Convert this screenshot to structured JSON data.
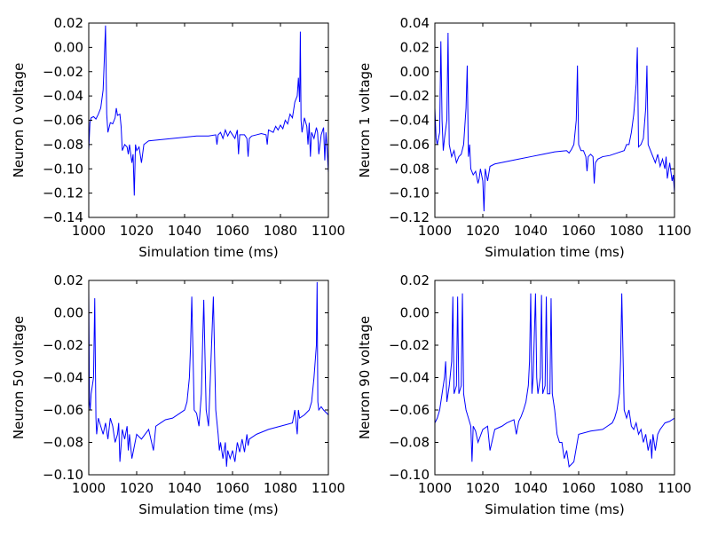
{
  "chart_data": [
    {
      "type": "line",
      "xlabel": "Simulation time (ms)",
      "ylabel": "Neuron 0 voltage",
      "xlim": [
        1000,
        1100
      ],
      "ylim": [
        -0.14,
        0.02
      ],
      "xticks": [
        1000,
        1020,
        1040,
        1060,
        1080,
        1100
      ],
      "xtick_labels": [
        "1000",
        "1020",
        "1040",
        "1060",
        "1080",
        "1100"
      ],
      "yticks": [
        0.02,
        0.0,
        -0.02,
        -0.04,
        -0.06,
        -0.08,
        -0.1,
        -0.12,
        -0.14
      ],
      "ytick_labels": [
        "0.02",
        "0.00",
        "−0.02",
        "−0.04",
        "−0.06",
        "−0.08",
        "−0.10",
        "−0.12",
        "−0.14"
      ],
      "line_color": "#0000ff",
      "grid": false,
      "series": [
        {
          "x": [
            1000,
            1000.5,
            1001,
            1002,
            1003,
            1004,
            1005,
            1006,
            1006.5,
            1007,
            1007.5,
            1008,
            1009,
            1010,
            1011,
            1011.5,
            1012,
            1013,
            1013.5,
            1014,
            1015,
            1016,
            1016.5,
            1017,
            1018,
            1018.5,
            1019,
            1019.5,
            1020,
            1021,
            1022,
            1023,
            1025,
            1030,
            1035,
            1040,
            1045,
            1050,
            1053,
            1053.5,
            1054,
            1055,
            1056,
            1057,
            1058,
            1059,
            1060,
            1061,
            1062,
            1062.5,
            1063,
            1065,
            1066,
            1066.5,
            1067,
            1068,
            1070,
            1072,
            1074,
            1074.5,
            1075,
            1077,
            1078,
            1079,
            1080,
            1081,
            1082,
            1083,
            1084,
            1085,
            1086,
            1087,
            1087.5,
            1088,
            1088.3,
            1088.6,
            1089,
            1090,
            1091,
            1091.5,
            1092,
            1092.5,
            1093,
            1094,
            1095,
            1095.5,
            1096,
            1097,
            1098,
            1098.5,
            1099,
            1099.5,
            1100
          ],
          "y": [
            -0.085,
            -0.062,
            -0.058,
            -0.057,
            -0.059,
            -0.055,
            -0.05,
            -0.035,
            -0.01,
            0.018,
            -0.055,
            -0.07,
            -0.062,
            -0.063,
            -0.058,
            -0.05,
            -0.056,
            -0.055,
            -0.065,
            -0.085,
            -0.08,
            -0.082,
            -0.088,
            -0.08,
            -0.095,
            -0.088,
            -0.122,
            -0.08,
            -0.085,
            -0.082,
            -0.095,
            -0.08,
            -0.077,
            -0.076,
            -0.075,
            -0.074,
            -0.073,
            -0.073,
            -0.072,
            -0.08,
            -0.072,
            -0.07,
            -0.075,
            -0.068,
            -0.073,
            -0.069,
            -0.072,
            -0.075,
            -0.068,
            -0.088,
            -0.072,
            -0.072,
            -0.075,
            -0.09,
            -0.075,
            -0.073,
            -0.072,
            -0.071,
            -0.072,
            -0.08,
            -0.068,
            -0.07,
            -0.065,
            -0.068,
            -0.064,
            -0.067,
            -0.06,
            -0.063,
            -0.055,
            -0.058,
            -0.045,
            -0.04,
            -0.025,
            -0.045,
            0.013,
            -0.06,
            -0.07,
            -0.058,
            -0.065,
            -0.08,
            -0.062,
            -0.09,
            -0.07,
            -0.075,
            -0.066,
            -0.07,
            -0.088,
            -0.072,
            -0.066,
            -0.093,
            -0.07,
            -0.085,
            -0.103
          ]
        }
      ]
    },
    {
      "type": "line",
      "xlabel": "Simulation time (ms)",
      "ylabel": "Neuron 1 voltage",
      "xlim": [
        1000,
        1100
      ],
      "ylim": [
        -0.12,
        0.04
      ],
      "xticks": [
        1000,
        1020,
        1040,
        1060,
        1080,
        1100
      ],
      "xtick_labels": [
        "1000",
        "1020",
        "1040",
        "1060",
        "1080",
        "1100"
      ],
      "yticks": [
        0.04,
        0.02,
        0.0,
        -0.02,
        -0.04,
        -0.06,
        -0.08,
        -0.1,
        -0.12
      ],
      "ytick_labels": [
        "0.04",
        "0.02",
        "0.00",
        "−0.02",
        "−0.04",
        "−0.06",
        "−0.08",
        "−0.10",
        "−0.12"
      ],
      "line_color": "#0000ff",
      "grid": false,
      "series": [
        {
          "x": [
            1000,
            1000.5,
            1001,
            1002,
            1002.5,
            1003,
            1003.5,
            1004,
            1005,
            1005.5,
            1006,
            1006.5,
            1007,
            1008,
            1009,
            1010,
            1011,
            1012,
            1013,
            1013.5,
            1014,
            1014.5,
            1015,
            1016,
            1017,
            1018,
            1018.5,
            1019,
            1020,
            1020.5,
            1021,
            1022,
            1023,
            1025,
            1030,
            1035,
            1040,
            1045,
            1050,
            1055,
            1056,
            1057,
            1058,
            1059,
            1059.5,
            1060,
            1061,
            1062,
            1063,
            1063.5,
            1064,
            1065,
            1066,
            1066.5,
            1067,
            1068,
            1070,
            1073,
            1076,
            1079,
            1080,
            1081,
            1082,
            1083,
            1084,
            1084.5,
            1085,
            1086,
            1087,
            1088,
            1088.5,
            1089,
            1090,
            1091,
            1092,
            1093,
            1094,
            1095,
            1096,
            1096.5,
            1097,
            1098,
            1099,
            1099.5,
            1100
          ],
          "y": [
            -0.03,
            -0.055,
            -0.06,
            -0.05,
            0.025,
            -0.04,
            -0.065,
            -0.055,
            -0.04,
            0.032,
            -0.06,
            -0.065,
            -0.07,
            -0.065,
            -0.075,
            -0.07,
            -0.068,
            -0.06,
            -0.03,
            0.005,
            -0.07,
            -0.06,
            -0.08,
            -0.085,
            -0.082,
            -0.092,
            -0.088,
            -0.08,
            -0.09,
            -0.115,
            -0.08,
            -0.09,
            -0.078,
            -0.076,
            -0.074,
            -0.072,
            -0.07,
            -0.068,
            -0.066,
            -0.065,
            -0.067,
            -0.064,
            -0.06,
            -0.04,
            0.005,
            -0.06,
            -0.065,
            -0.065,
            -0.07,
            -0.082,
            -0.07,
            -0.068,
            -0.07,
            -0.092,
            -0.075,
            -0.072,
            -0.07,
            -0.069,
            -0.067,
            -0.065,
            -0.06,
            -0.06,
            -0.05,
            -0.035,
            -0.01,
            0.02,
            -0.062,
            -0.06,
            -0.055,
            -0.03,
            0.005,
            -0.06,
            -0.065,
            -0.07,
            -0.075,
            -0.068,
            -0.078,
            -0.072,
            -0.08,
            -0.07,
            -0.088,
            -0.075,
            -0.09,
            -0.085,
            -0.1
          ]
        }
      ]
    },
    {
      "type": "line",
      "xlabel": "Simulation time (ms)",
      "ylabel": "Neuron 50 voltage",
      "xlim": [
        1000,
        1100
      ],
      "ylim": [
        -0.1,
        0.02
      ],
      "xticks": [
        1000,
        1020,
        1040,
        1060,
        1080,
        1100
      ],
      "xtick_labels": [
        "1000",
        "1020",
        "1040",
        "1060",
        "1080",
        "1100"
      ],
      "yticks": [
        0.02,
        0.0,
        -0.02,
        -0.04,
        -0.06,
        -0.08,
        -0.1
      ],
      "ytick_labels": [
        "0.02",
        "0.00",
        "−0.02",
        "−0.04",
        "−0.06",
        "−0.08",
        "−0.10"
      ],
      "line_color": "#0000ff",
      "grid": false,
      "series": [
        {
          "x": [
            1000,
            1000.3,
            1000.6,
            1001,
            1002,
            1002.5,
            1003,
            1003.3,
            1004,
            1005,
            1006,
            1007,
            1008,
            1009,
            1010,
            1011,
            1012,
            1012.5,
            1013,
            1014,
            1015,
            1016,
            1016.5,
            1017,
            1018,
            1020,
            1022,
            1025,
            1027,
            1028,
            1030,
            1032,
            1035,
            1038,
            1040,
            1041,
            1042,
            1042.5,
            1043,
            1044,
            1045,
            1046,
            1047,
            1047.5,
            1048,
            1049,
            1050,
            1051,
            1052,
            1053,
            1054,
            1054.5,
            1055,
            1056,
            1057,
            1057.5,
            1058,
            1059,
            1060,
            1061,
            1062,
            1063,
            1064,
            1065,
            1066,
            1066.5,
            1067,
            1070,
            1075,
            1080,
            1085,
            1086,
            1087,
            1087.5,
            1088,
            1090,
            1092,
            1093,
            1094,
            1095,
            1095.3,
            1095.6,
            1096,
            1097,
            1098,
            1100
          ],
          "y": [
            0.015,
            -0.055,
            -0.06,
            -0.05,
            -0.04,
            0.009,
            -0.065,
            -0.075,
            -0.065,
            -0.07,
            -0.075,
            -0.068,
            -0.078,
            -0.065,
            -0.07,
            -0.08,
            -0.075,
            -0.068,
            -0.092,
            -0.072,
            -0.078,
            -0.07,
            -0.085,
            -0.075,
            -0.09,
            -0.075,
            -0.078,
            -0.072,
            -0.085,
            -0.07,
            -0.068,
            -0.066,
            -0.065,
            -0.062,
            -0.06,
            -0.055,
            -0.04,
            -0.02,
            0.01,
            -0.06,
            -0.062,
            -0.07,
            -0.05,
            -0.02,
            0.008,
            -0.06,
            -0.07,
            -0.03,
            0.01,
            -0.06,
            -0.075,
            -0.085,
            -0.08,
            -0.09,
            -0.08,
            -0.095,
            -0.085,
            -0.09,
            -0.085,
            -0.092,
            -0.08,
            -0.086,
            -0.078,
            -0.086,
            -0.075,
            -0.082,
            -0.078,
            -0.075,
            -0.072,
            -0.07,
            -0.068,
            -0.06,
            -0.075,
            -0.06,
            -0.065,
            -0.063,
            -0.06,
            -0.055,
            -0.04,
            -0.02,
            0.019,
            -0.055,
            -0.06,
            -0.058,
            -0.06,
            -0.063
          ]
        }
      ]
    },
    {
      "type": "line",
      "xlabel": "Simulation time (ms)",
      "ylabel": "Neuron 90 voltage",
      "xlim": [
        1000,
        1100
      ],
      "ylim": [
        -0.1,
        0.02
      ],
      "xticks": [
        1000,
        1020,
        1040,
        1060,
        1080,
        1100
      ],
      "xtick_labels": [
        "1000",
        "1020",
        "1040",
        "1060",
        "1080",
        "1100"
      ],
      "yticks": [
        0.02,
        0.0,
        -0.02,
        -0.04,
        -0.06,
        -0.08,
        -0.1
      ],
      "ytick_labels": [
        "0.02",
        "0.00",
        "−0.02",
        "−0.04",
        "−0.06",
        "−0.08",
        "−0.10"
      ],
      "line_color": "#0000ff",
      "grid": false,
      "series": [
        {
          "x": [
            1000,
            1001,
            1002,
            1003,
            1004,
            1004.5,
            1005,
            1006,
            1007,
            1007.5,
            1008,
            1009,
            1009.5,
            1010,
            1011,
            1011.5,
            1012,
            1013,
            1014,
            1015,
            1015.5,
            1016,
            1017,
            1018,
            1020,
            1022,
            1023,
            1025,
            1028,
            1030,
            1033,
            1034,
            1035,
            1036,
            1037,
            1038,
            1039,
            1039.5,
            1040,
            1040.5,
            1041,
            1042,
            1042.5,
            1043,
            1044,
            1044.5,
            1045,
            1046,
            1046.5,
            1047,
            1048,
            1048.5,
            1049,
            1050,
            1051,
            1052,
            1053,
            1054,
            1055,
            1056,
            1058,
            1060,
            1065,
            1070,
            1072,
            1074,
            1075,
            1076,
            1077,
            1077.5,
            1078,
            1079,
            1080,
            1081,
            1082,
            1083,
            1084,
            1085,
            1086,
            1087,
            1088,
            1089,
            1090,
            1090.5,
            1091,
            1092,
            1093,
            1094,
            1095,
            1096,
            1098,
            1100
          ],
          "y": [
            -0.068,
            -0.065,
            -0.06,
            -0.05,
            -0.04,
            -0.03,
            -0.055,
            -0.045,
            -0.03,
            0.01,
            -0.05,
            -0.045,
            0.01,
            -0.05,
            -0.045,
            0.012,
            -0.05,
            -0.06,
            -0.065,
            -0.07,
            -0.092,
            -0.07,
            -0.073,
            -0.08,
            -0.072,
            -0.07,
            -0.085,
            -0.072,
            -0.07,
            -0.068,
            -0.066,
            -0.075,
            -0.067,
            -0.064,
            -0.06,
            -0.055,
            -0.045,
            -0.03,
            0.012,
            -0.05,
            -0.04,
            0.012,
            -0.04,
            -0.05,
            -0.04,
            0.011,
            -0.05,
            -0.045,
            0.01,
            -0.05,
            -0.05,
            0.009,
            -0.05,
            -0.06,
            -0.075,
            -0.08,
            -0.08,
            -0.09,
            -0.085,
            -0.095,
            -0.092,
            -0.075,
            -0.073,
            -0.072,
            -0.07,
            -0.068,
            -0.065,
            -0.06,
            -0.05,
            -0.03,
            0.012,
            -0.06,
            -0.065,
            -0.06,
            -0.07,
            -0.072,
            -0.068,
            -0.075,
            -0.072,
            -0.08,
            -0.075,
            -0.085,
            -0.078,
            -0.09,
            -0.075,
            -0.085,
            -0.075,
            -0.072,
            -0.07,
            -0.068,
            -0.067,
            -0.065
          ]
        }
      ]
    }
  ]
}
